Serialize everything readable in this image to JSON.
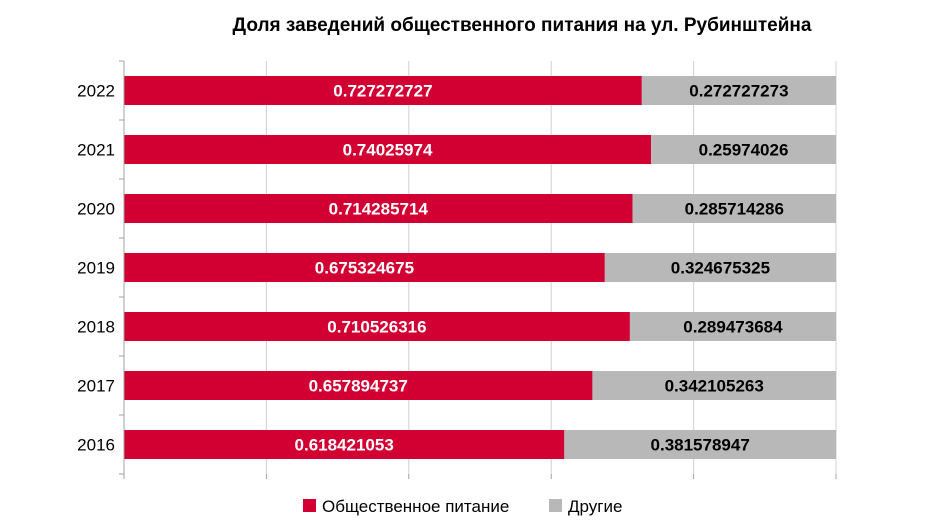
{
  "chart_data": {
    "type": "bar",
    "orientation": "horizontal",
    "stacked": true,
    "title": "Доля заведений общественного питания на ул. Рубинштейна",
    "categories": [
      "2022",
      "2021",
      "2020",
      "2019",
      "2018",
      "2017",
      "2016"
    ],
    "series": [
      {
        "name": "Общественное питание",
        "color": "#D20032",
        "values": [
          0.727272727,
          0.74025974,
          0.714285714,
          0.675324675,
          0.710526316,
          0.657894737,
          0.618421053
        ],
        "labels": [
          "0.727272727",
          "0.74025974",
          "0.714285714",
          "0.675324675",
          "0.710526316",
          "0.657894737",
          "0.618421053"
        ]
      },
      {
        "name": "Другие",
        "color": "#B8B8B8",
        "values": [
          0.272727273,
          0.25974026,
          0.285714286,
          0.324675325,
          0.289473684,
          0.342105263,
          0.381578947
        ],
        "labels": [
          "0.272727273",
          "0.25974026",
          "0.285714286",
          "0.324675325",
          "0.289473684",
          "0.342105263",
          "0.381578947"
        ]
      }
    ],
    "xlim": [
      0,
      1
    ],
    "grid": true,
    "legend_position": "bottom"
  }
}
